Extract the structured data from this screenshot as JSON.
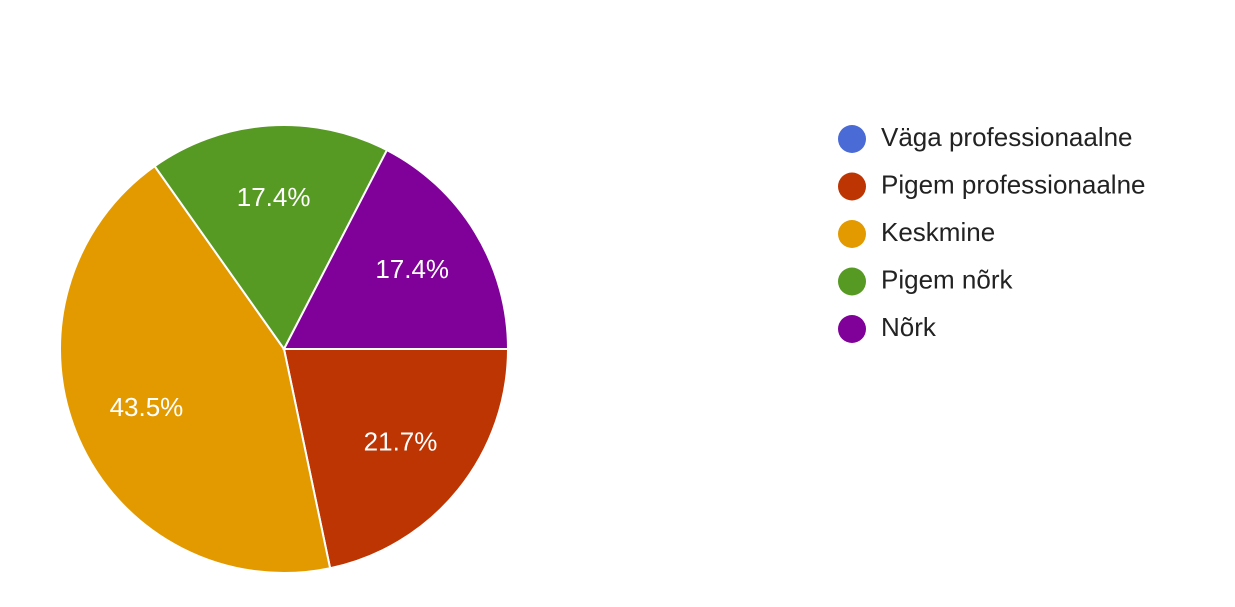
{
  "chart_data": {
    "type": "pie",
    "categories": [
      "Väga professionaalne",
      "Pigem professionaalne",
      "Keskmine",
      "Pigem nõrk",
      "Nõrk"
    ],
    "values": [
      0,
      21.7,
      43.5,
      17.4,
      17.4
    ],
    "value_labels": [
      null,
      "21.7%",
      "43.5%",
      "17.4%",
      "17.4%"
    ],
    "colors": [
      "#4a6bd6",
      "#bd3502",
      "#e39a00",
      "#569a24",
      "#80009a"
    ],
    "legend": "right"
  }
}
